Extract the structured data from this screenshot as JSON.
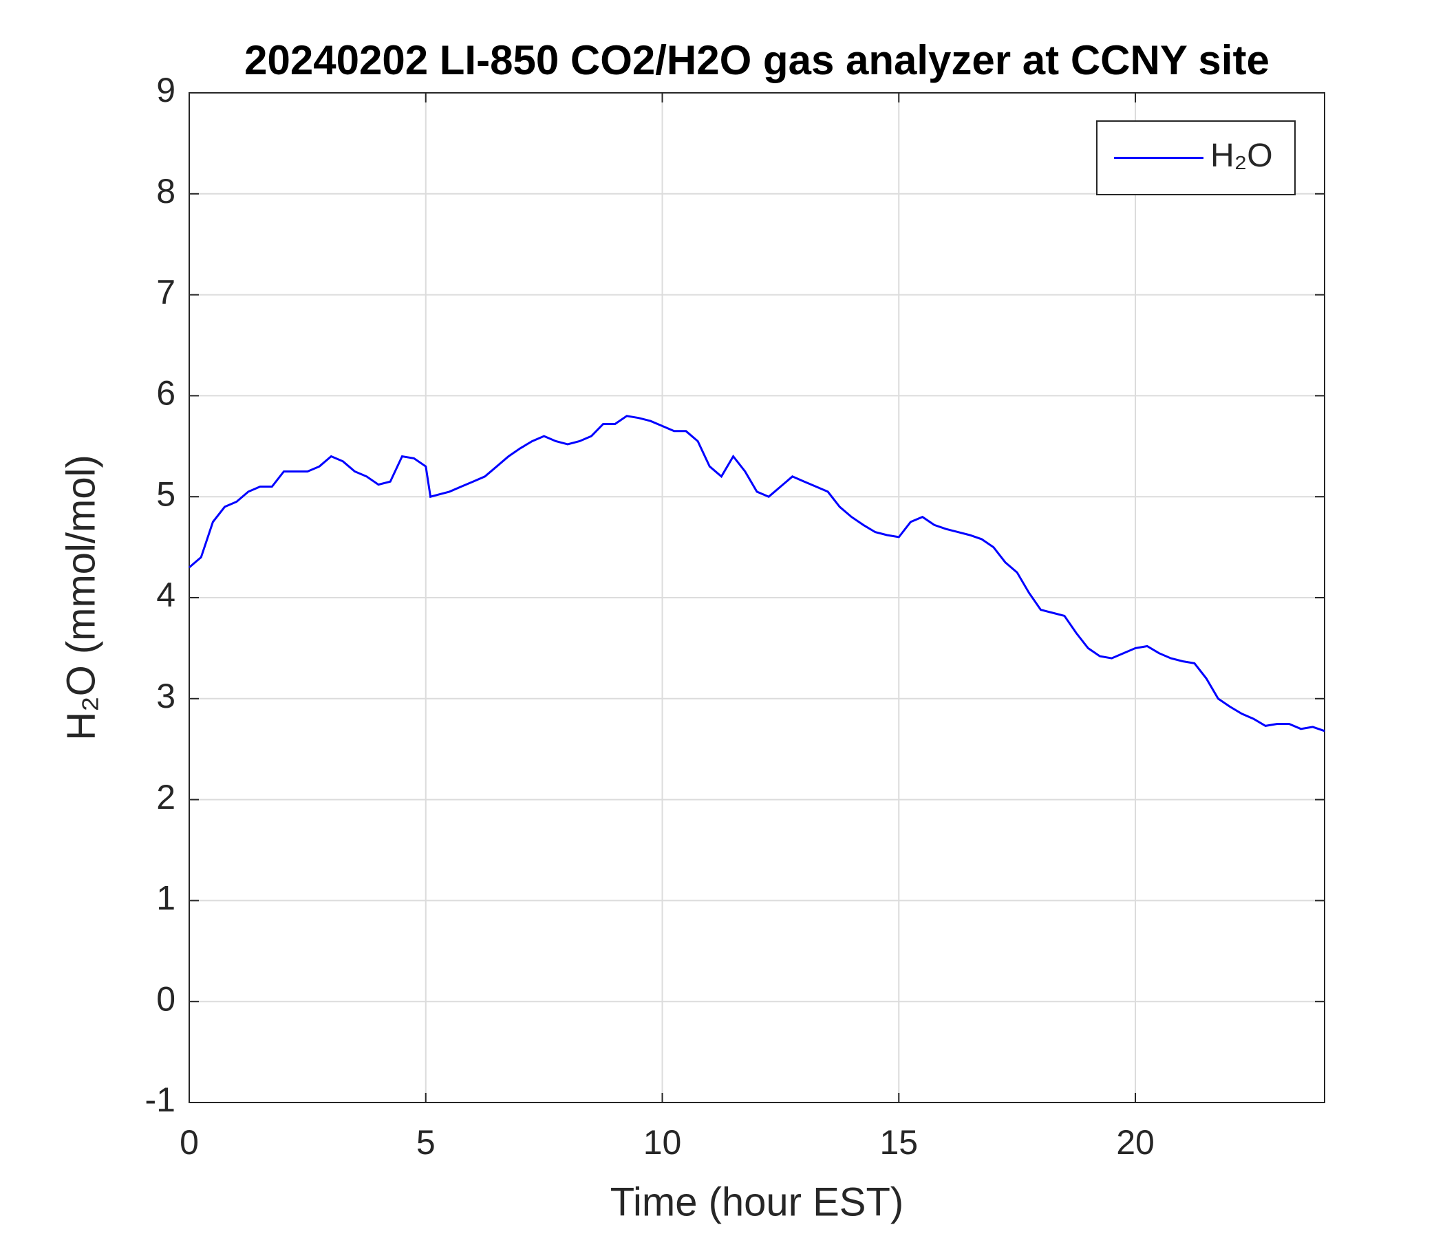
{
  "chart_data": {
    "type": "line",
    "title": "20240202 LI-850 CO2/H2O gas analyzer at CCNY site",
    "x_label": "Time (hour EST)",
    "y_label": "H₂O (mmol/mol)",
    "x": [
      0,
      0.25,
      0.5,
      0.75,
      1,
      1.25,
      1.5,
      1.75,
      2,
      2.25,
      2.5,
      2.75,
      3,
      3.25,
      3.5,
      3.75,
      4,
      4.25,
      4.5,
      4.75,
      5,
      5.1,
      5.5,
      5.75,
      6,
      6.25,
      6.5,
      6.75,
      7,
      7.25,
      7.5,
      7.75,
      8,
      8.25,
      8.5,
      8.75,
      9,
      9.25,
      9.5,
      9.75,
      10,
      10.25,
      10.5,
      10.75,
      11,
      11.25,
      11.5,
      11.75,
      12,
      12.25,
      12.5,
      12.75,
      13,
      13.25,
      13.5,
      13.75,
      14,
      14.25,
      14.5,
      14.75,
      15,
      15.25,
      15.5,
      15.75,
      16,
      16.25,
      16.5,
      16.75,
      17,
      17.25,
      17.5,
      17.75,
      18,
      18.25,
      18.5,
      18.75,
      19,
      19.25,
      19.5,
      19.75,
      20,
      20.25,
      20.5,
      20.75,
      21,
      21.25,
      21.5,
      21.75,
      22,
      22.25,
      22.5,
      22.75,
      23,
      23.25,
      23.5,
      23.75,
      24
    ],
    "series": [
      {
        "name": "H₂O",
        "color": "#0000ff",
        "values": [
          4.3,
          4.4,
          4.75,
          4.9,
          4.95,
          5.05,
          5.1,
          5.1,
          5.25,
          5.25,
          5.25,
          5.3,
          5.4,
          5.35,
          5.25,
          5.2,
          5.12,
          5.15,
          5.4,
          5.38,
          5.3,
          5.0,
          5.05,
          5.1,
          5.15,
          5.2,
          5.3,
          5.4,
          5.48,
          5.55,
          5.6,
          5.55,
          5.52,
          5.55,
          5.6,
          5.72,
          5.72,
          5.8,
          5.78,
          5.75,
          5.7,
          5.65,
          5.65,
          5.55,
          5.3,
          5.2,
          5.4,
          5.25,
          5.05,
          5.0,
          5.1,
          5.2,
          5.15,
          5.1,
          5.05,
          4.9,
          4.8,
          4.72,
          4.65,
          4.62,
          4.6,
          4.75,
          4.8,
          4.72,
          4.68,
          4.65,
          4.62,
          4.58,
          4.5,
          4.35,
          4.25,
          4.05,
          3.88,
          3.85,
          3.82,
          3.65,
          3.5,
          3.42,
          3.4,
          3.45,
          3.5,
          3.52,
          3.45,
          3.4,
          3.37,
          3.35,
          3.2,
          3.0,
          2.92,
          2.85,
          2.8,
          2.73,
          2.75,
          2.75,
          2.7,
          2.72,
          2.68
        ]
      }
    ],
    "xlim": [
      0,
      24
    ],
    "xticks": [
      0,
      5,
      10,
      15,
      20
    ],
    "ylim": [
      -1,
      9
    ],
    "yticks": [
      -1,
      0,
      1,
      2,
      3,
      4,
      5,
      6,
      7,
      8,
      9
    ],
    "grid": true,
    "legend": "upper right"
  }
}
